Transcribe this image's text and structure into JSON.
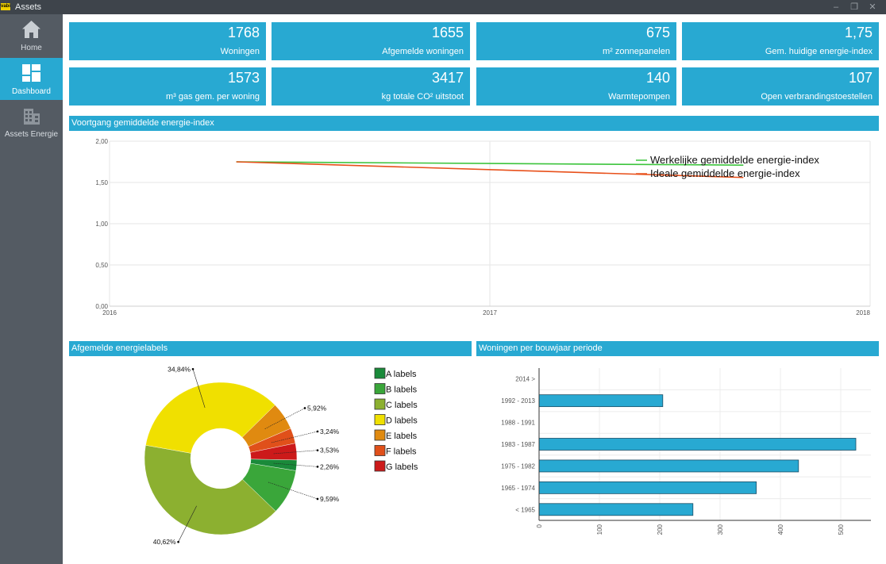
{
  "window": {
    "title": "Assets",
    "logo_text": "vabi"
  },
  "sidebar": {
    "items": [
      {
        "label": "Home",
        "icon": "home-icon"
      },
      {
        "label": "Dashboard",
        "icon": "dashboard-icon",
        "active": true
      },
      {
        "label": "Assets Energie",
        "icon": "building-icon"
      }
    ]
  },
  "kpis": [
    {
      "value": "1768",
      "label": "Woningen"
    },
    {
      "value": "1655",
      "label": "Afgemelde woningen"
    },
    {
      "value": "675",
      "label": "m² zonnepanelen"
    },
    {
      "value": "1,75",
      "label": "Gem. huidige energie-index"
    },
    {
      "value": "1573",
      "label": "m³ gas gem. per woning"
    },
    {
      "value": "3417",
      "label": "kg totale CO² uitstoot"
    },
    {
      "value": "140",
      "label": "Warmtepompen"
    },
    {
      "value": "107",
      "label": "Open verbrandingstoestellen"
    }
  ],
  "colors": {
    "accent": "#28a9d2",
    "sidebar": "#545b63",
    "titlebar": "#3e444b"
  },
  "chart_data": [
    {
      "type": "line",
      "title": "Voortgang gemiddelde energie-index",
      "x_ticks": [
        "2016",
        "2017",
        "2018"
      ],
      "y_ticks": [
        "0,00",
        "0,50",
        "1,00",
        "1,50",
        "2,00"
      ],
      "ylim": [
        0,
        2
      ],
      "grid": true,
      "legend_placement": "top-right",
      "series": [
        {
          "name": "Werkelijke gemiddelde energie-index",
          "color": "#3cc43c",
          "x": [
            "2016-05",
            "2017-09"
          ],
          "y": [
            1.75,
            1.71
          ]
        },
        {
          "name": "Ideale gemiddelde energie-index",
          "color": "#e8501a",
          "x": [
            "2016-05",
            "2017-09"
          ],
          "y": [
            1.75,
            1.56
          ]
        }
      ]
    },
    {
      "type": "pie",
      "title": "Afgemelde energielabels",
      "legend_placement": "right",
      "categories": [
        "A labels",
        "B labels",
        "C labels",
        "D labels",
        "E labels",
        "F labels",
        "G labels"
      ],
      "values": [
        2.26,
        9.59,
        40.62,
        34.84,
        5.92,
        3.24,
        3.53
      ],
      "value_labels": [
        "2,26%",
        "9,59%",
        "40,62%",
        "34,84%",
        "5,92%",
        "3,24%",
        "3,53%"
      ],
      "colors": [
        "#1a8a3a",
        "#3aa63a",
        "#8cb030",
        "#f0e000",
        "#e08a10",
        "#e0501a",
        "#cc1a1a"
      ]
    },
    {
      "type": "bar",
      "orientation": "horizontal",
      "title": "Woningen per bouwjaar periode",
      "categories": [
        "2014 >",
        "1992 - 2013",
        "1988 - 1991",
        "1983 - 1987",
        "1975 - 1982",
        "1965 - 1974",
        "< 1965"
      ],
      "values": [
        0,
        205,
        0,
        525,
        430,
        360,
        255
      ],
      "x_ticks": [
        "0",
        "100",
        "200",
        "300",
        "400",
        "500"
      ],
      "xlim": [
        0,
        550
      ],
      "color": "#28a9d2"
    }
  ]
}
